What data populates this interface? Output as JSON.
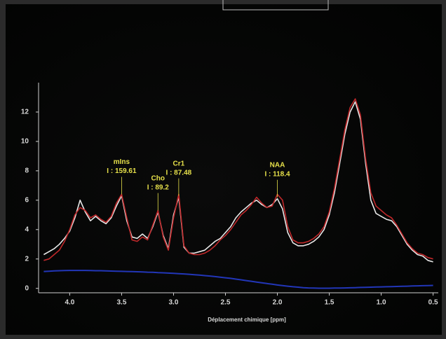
{
  "chart_data": {
    "type": "line",
    "x_label": "Déplacement chimique [ppm]",
    "x": [
      4.25,
      4.2,
      4.15,
      4.1,
      4.05,
      4.0,
      3.95,
      3.9,
      3.85,
      3.8,
      3.75,
      3.7,
      3.65,
      3.6,
      3.55,
      3.5,
      3.45,
      3.4,
      3.35,
      3.3,
      3.25,
      3.2,
      3.15,
      3.1,
      3.05,
      3.0,
      2.95,
      2.9,
      2.85,
      2.8,
      2.75,
      2.7,
      2.65,
      2.6,
      2.55,
      2.5,
      2.45,
      2.4,
      2.35,
      2.3,
      2.25,
      2.2,
      2.15,
      2.1,
      2.05,
      2.0,
      1.95,
      1.9,
      1.85,
      1.8,
      1.75,
      1.7,
      1.65,
      1.6,
      1.55,
      1.5,
      1.45,
      1.4,
      1.35,
      1.3,
      1.25,
      1.2,
      1.15,
      1.1,
      1.05,
      1.0,
      0.95,
      0.9,
      0.85,
      0.8,
      0.75,
      0.7,
      0.65,
      0.6,
      0.55,
      0.5
    ],
    "series": [
      {
        "color": "#e8e8e8",
        "values": [
          2.3,
          2.5,
          2.7,
          3.0,
          3.4,
          3.9,
          4.8,
          6.0,
          5.2,
          4.6,
          4.9,
          4.6,
          4.4,
          4.8,
          5.6,
          6.3,
          4.6,
          3.5,
          3.4,
          3.7,
          3.4,
          4.2,
          5.2,
          3.6,
          2.7,
          5.0,
          6.2,
          2.8,
          2.4,
          2.4,
          2.5,
          2.6,
          2.9,
          3.2,
          3.4,
          3.8,
          4.2,
          4.8,
          5.2,
          5.5,
          5.8,
          6.0,
          5.7,
          5.5,
          5.7,
          6.1,
          5.4,
          3.8,
          3.1,
          2.9,
          2.9,
          3.0,
          3.2,
          3.5,
          4.0,
          5.0,
          6.5,
          8.5,
          10.5,
          12.0,
          12.7,
          11.5,
          8.5,
          6.0,
          5.1,
          4.9,
          4.7,
          4.6,
          4.2,
          3.6,
          3.0,
          2.6,
          2.3,
          2.2,
          1.9,
          1.8
        ]
      },
      {
        "color": "#c0282a",
        "values": [
          1.9,
          2.0,
          2.3,
          2.6,
          3.2,
          4.0,
          5.0,
          5.5,
          5.3,
          4.8,
          5.0,
          4.7,
          4.5,
          4.9,
          5.8,
          6.4,
          4.8,
          3.3,
          3.2,
          3.5,
          3.3,
          4.3,
          5.3,
          3.5,
          2.6,
          4.8,
          6.4,
          2.9,
          2.4,
          2.3,
          2.3,
          2.4,
          2.6,
          2.9,
          3.3,
          3.6,
          4.0,
          4.5,
          5.0,
          5.3,
          5.7,
          6.2,
          5.8,
          5.5,
          5.6,
          6.4,
          6.0,
          4.2,
          3.3,
          3.1,
          3.1,
          3.2,
          3.4,
          3.7,
          4.2,
          5.2,
          6.8,
          8.8,
          10.8,
          12.3,
          12.9,
          11.8,
          8.8,
          6.5,
          5.6,
          5.3,
          5.0,
          4.8,
          4.3,
          3.7,
          3.1,
          2.7,
          2.4,
          2.3,
          2.1,
          2.0
        ]
      },
      {
        "color": "#2236b8",
        "values": [
          1.15,
          1.17,
          1.19,
          1.2,
          1.21,
          1.22,
          1.22,
          1.22,
          1.22,
          1.21,
          1.2,
          1.2,
          1.19,
          1.18,
          1.17,
          1.16,
          1.15,
          1.14,
          1.13,
          1.12,
          1.1,
          1.09,
          1.07,
          1.06,
          1.04,
          1.02,
          1.0,
          0.98,
          0.96,
          0.93,
          0.9,
          0.87,
          0.84,
          0.8,
          0.76,
          0.72,
          0.68,
          0.63,
          0.58,
          0.53,
          0.48,
          0.43,
          0.38,
          0.33,
          0.28,
          0.23,
          0.19,
          0.15,
          0.11,
          0.08,
          0.05,
          0.03,
          0.02,
          0.01,
          0.01,
          0.01,
          0.02,
          0.02,
          0.03,
          0.04,
          0.05,
          0.06,
          0.07,
          0.08,
          0.09,
          0.1,
          0.11,
          0.12,
          0.13,
          0.14,
          0.15,
          0.16,
          0.17,
          0.18,
          0.19,
          0.2
        ]
      }
    ],
    "xlim": [
      4.3,
      0.45
    ],
    "xticks": [
      {
        "value": 4,
        "label": "4.0"
      },
      3.5,
      {
        "value": 3,
        "label": "3.0"
      },
      2.5,
      {
        "value": 2,
        "label": "2.0"
      },
      1.5,
      {
        "value": 1,
        "label": "1.0"
      },
      0.5
    ],
    "ylim": [
      -0.3,
      14
    ],
    "yticks": [
      0,
      2,
      4,
      6,
      8,
      10,
      12
    ],
    "annotations": [
      {
        "name": "mIns",
        "text": "I : 159.61",
        "x": 3.5,
        "y": 6.3
      },
      {
        "name": "Cho",
        "text": "I : 89.2",
        "x": 3.15,
        "y": 5.2
      },
      {
        "name": "Cr1",
        "text": "I : 87.48",
        "x": 2.95,
        "y": 6.2
      },
      {
        "name": "NAA",
        "text": "I : 118.4",
        "x": 2.0,
        "y": 6.1
      }
    ]
  }
}
